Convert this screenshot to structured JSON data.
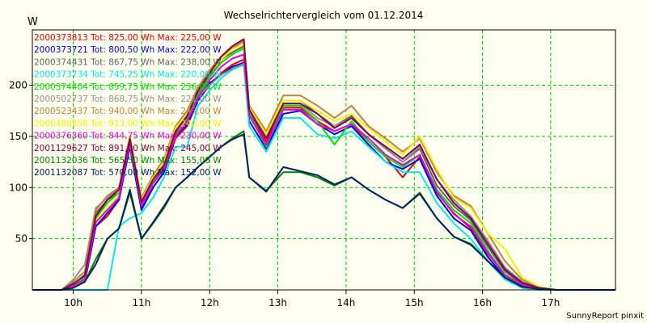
{
  "chart_data": {
    "type": "line",
    "title": "Wechselrichtervergleich vom 01.12.2014",
    "ylabel": "W",
    "xlabel": "",
    "footer": "SunnyReport pinxit",
    "ylim": [
      0,
      250
    ],
    "xlim": [
      9.4,
      17.95
    ],
    "grid": true,
    "legend_position": "top-left",
    "y_ticks": [
      50,
      100,
      150,
      200
    ],
    "x_ticks": [
      {
        "v": 10,
        "label": "10h"
      },
      {
        "v": 11,
        "label": "11h"
      },
      {
        "v": 12,
        "label": "12h"
      },
      {
        "v": 13,
        "label": "13h"
      },
      {
        "v": 14,
        "label": "14h"
      },
      {
        "v": 15,
        "label": "15h"
      },
      {
        "v": 16,
        "label": "16h"
      },
      {
        "v": 17,
        "label": "17h"
      }
    ],
    "x": [
      9.67,
      9.83,
      10.0,
      10.17,
      10.33,
      10.5,
      10.67,
      10.83,
      11.0,
      11.17,
      11.33,
      11.5,
      11.67,
      11.83,
      12.0,
      12.17,
      12.33,
      12.5,
      12.58,
      12.83,
      13.08,
      13.33,
      13.58,
      13.83,
      14.08,
      14.33,
      14.58,
      14.83,
      15.08,
      15.33,
      15.58,
      15.83,
      16.08,
      16.33,
      16.58,
      16.83,
      17.08,
      17.33
    ],
    "series": [
      {
        "name": "2000373813",
        "label": "2000373813 Tot: 825,00 Wh Max: 225,00 W",
        "color": "#e00000",
        "values": [
          0,
          0,
          3,
          8,
          62,
          72,
          88,
          142,
          80,
          100,
          115,
          148,
          160,
          185,
          200,
          212,
          220,
          225,
          170,
          145,
          178,
          178,
          165,
          155,
          162,
          145,
          130,
          110,
          130,
          95,
          75,
          60,
          35,
          15,
          5,
          2,
          0,
          0
        ]
      },
      {
        "name": "2000373721",
        "label": "2000373721 Tot: 800,50 Wh Max: 222,00 W",
        "color": "#0000e0",
        "values": [
          0,
          0,
          3,
          8,
          62,
          75,
          88,
          140,
          78,
          100,
          115,
          150,
          162,
          185,
          202,
          210,
          218,
          222,
          165,
          138,
          172,
          175,
          162,
          152,
          160,
          142,
          125,
          118,
          128,
          92,
          70,
          58,
          32,
          12,
          4,
          1,
          0,
          0
        ]
      },
      {
        "name": "2000374431",
        "label": "2000374431 Tot: 867,75 Wh Max: 238,00 W",
        "color": "#606060",
        "values": [
          0,
          0,
          5,
          15,
          75,
          88,
          95,
          145,
          82,
          105,
          120,
          152,
          170,
          192,
          210,
          225,
          232,
          238,
          172,
          148,
          185,
          185,
          172,
          160,
          170,
          152,
          138,
          125,
          138,
          102,
          82,
          68,
          42,
          18,
          6,
          2,
          0,
          0
        ]
      },
      {
        "name": "2000373734",
        "label": "2000373734 Tot: 745,25 Wh Max: 220,00 W",
        "color": "#00e8e8",
        "values": [
          0,
          0,
          0,
          0,
          0,
          0,
          62,
          70,
          75,
          90,
          110,
          140,
          140,
          180,
          195,
          207,
          215,
          220,
          160,
          135,
          168,
          168,
          152,
          148,
          155,
          140,
          125,
          115,
          115,
          85,
          65,
          50,
          28,
          10,
          2,
          0,
          0,
          0
        ]
      },
      {
        "name": "2000374404",
        "label": "2000374404 Tot: 859,75 Wh Max: 236,00 W",
        "color": "#00e000",
        "values": [
          0,
          0,
          5,
          12,
          70,
          85,
          95,
          148,
          85,
          105,
          118,
          150,
          168,
          190,
          208,
          222,
          230,
          236,
          172,
          140,
          180,
          180,
          165,
          142,
          165,
          145,
          130,
          120,
          132,
          98,
          78,
          65,
          38,
          15,
          5,
          2,
          0,
          0
        ]
      },
      {
        "name": "2000502737",
        "label": "2000502737 Tot: 868,75 Wh Max: 221,00 W",
        "color": "#909090",
        "values": [
          0,
          0,
          10,
          25,
          80,
          90,
          100,
          142,
          85,
          108,
          122,
          155,
          165,
          188,
          200,
          210,
          216,
          221,
          175,
          150,
          182,
          182,
          168,
          160,
          168,
          152,
          138,
          125,
          140,
          108,
          88,
          72,
          48,
          22,
          8,
          2,
          0,
          0
        ]
      },
      {
        "name": "2000523437",
        "label": "2000523437 Tot: 940,00 Wh Max: 243,00 W",
        "color": "#c08040",
        "values": [
          0,
          0,
          8,
          18,
          78,
          92,
          100,
          150,
          90,
          112,
          128,
          160,
          175,
          198,
          215,
          228,
          236,
          243,
          180,
          155,
          190,
          190,
          180,
          168,
          180,
          160,
          148,
          135,
          148,
          115,
          92,
          82,
          55,
          28,
          10,
          3,
          0,
          0
        ]
      },
      {
        "name": "2000488858",
        "label": "2000488858 Tot: 913,00 Wh Max: 240,00 W",
        "color": "#f0f000",
        "values": [
          0,
          0,
          3,
          10,
          68,
          80,
          92,
          150,
          88,
          110,
          125,
          158,
          172,
          195,
          212,
          225,
          235,
          240,
          178,
          152,
          185,
          185,
          175,
          165,
          172,
          158,
          145,
          132,
          150,
          118,
          90,
          80,
          55,
          40,
          12,
          3,
          0,
          0
        ]
      },
      {
        "name": "2000376360",
        "label": "2000376360 Tot: 844,75 Wh Max: 230,00 W",
        "color": "#e000e0",
        "values": [
          0,
          0,
          4,
          10,
          66,
          78,
          90,
          145,
          82,
          104,
          118,
          150,
          165,
          188,
          205,
          218,
          226,
          230,
          170,
          142,
          176,
          176,
          162,
          155,
          162,
          148,
          132,
          122,
          132,
          96,
          74,
          62,
          36,
          14,
          5,
          2,
          0,
          0
        ]
      },
      {
        "name": "2001129627",
        "label": "2001129627 Tot: 891,00 Wh Max: 245,00 W",
        "color": "#800040",
        "values": [
          0,
          0,
          6,
          14,
          72,
          88,
          98,
          148,
          86,
          108,
          122,
          155,
          170,
          195,
          212,
          228,
          238,
          245,
          176,
          148,
          182,
          182,
          172,
          158,
          168,
          152,
          140,
          128,
          142,
          108,
          85,
          70,
          45,
          20,
          7,
          2,
          0,
          0
        ]
      },
      {
        "name": "2001132036",
        "label": "2001132036 Tot: 565,50 Wh Max: 155,00 W",
        "color": "#008000",
        "values": [
          0,
          0,
          2,
          8,
          30,
          50,
          60,
          95,
          50,
          65,
          80,
          100,
          110,
          120,
          130,
          140,
          148,
          155,
          110,
          97,
          115,
          115,
          110,
          102,
          110,
          98,
          88,
          80,
          95,
          70,
          52,
          45,
          28,
          12,
          3,
          1,
          0,
          0
        ]
      },
      {
        "name": "2001132087",
        "label": "2001132087 Tot: 570,00 Wh Max: 152,00 W",
        "color": "#002060",
        "values": [
          0,
          0,
          2,
          8,
          25,
          50,
          60,
          98,
          50,
          66,
          82,
          100,
          110,
          120,
          130,
          140,
          147,
          152,
          110,
          96,
          120,
          116,
          112,
          103,
          110,
          98,
          88,
          80,
          94,
          70,
          52,
          44,
          28,
          12,
          3,
          1,
          0,
          0
        ]
      }
    ]
  }
}
